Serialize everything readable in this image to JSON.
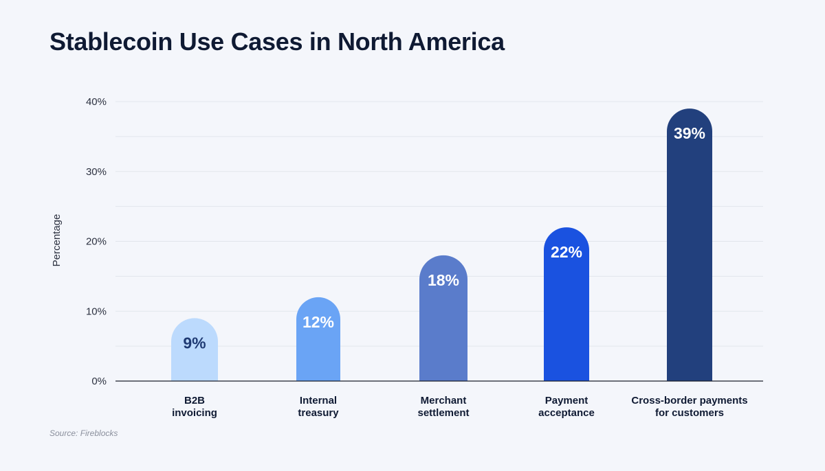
{
  "chart_data": {
    "type": "bar",
    "title": "Stablecoin Use Cases in North America",
    "xlabel": "",
    "ylabel": "Percentage",
    "ylim": [
      0,
      40
    ],
    "yticks": [
      0,
      10,
      20,
      30,
      40
    ],
    "ytick_labels": [
      "0%",
      "10%",
      "20%",
      "30%",
      "40%"
    ],
    "categories": [
      [
        "B2B",
        "invoicing"
      ],
      [
        "Internal",
        "treasury"
      ],
      [
        "Merchant",
        "settlement"
      ],
      [
        "Payment",
        "acceptance"
      ],
      [
        "Cross-border payments",
        "for customers"
      ]
    ],
    "values": [
      9,
      12,
      18,
      22,
      39
    ],
    "value_labels": [
      "9%",
      "12%",
      "18%",
      "22%",
      "39%"
    ],
    "bar_colors": [
      "#bcdafd",
      "#6aa4f5",
      "#5a7ccb",
      "#1a52e0",
      "#22407d"
    ],
    "label_colors": [
      "#1f3a73",
      "#ffffff",
      "#ffffff",
      "#ffffff",
      "#ffffff"
    ],
    "grid": true,
    "grid_color": "#e2e5ec",
    "axis_color": "#1a1f2b"
  },
  "source": "Source: Fireblocks"
}
